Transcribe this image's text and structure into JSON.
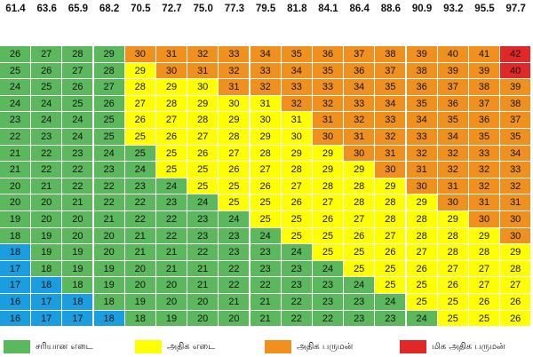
{
  "chart_data": {
    "type": "heatmap",
    "columns": [
      "61.4",
      "63.6",
      "65.9",
      "68.2",
      "70.5",
      "72.7",
      "75.0",
      "77.3",
      "79.5",
      "81.8",
      "84.1",
      "86.4",
      "88.6",
      "90.9",
      "93.2",
      "95.5",
      "97.7"
    ],
    "rows": [
      [
        26,
        27,
        28,
        29,
        30,
        31,
        32,
        33,
        34,
        35,
        36,
        37,
        38,
        39,
        40,
        41,
        42
      ],
      [
        25,
        26,
        27,
        28,
        29,
        30,
        31,
        32,
        33,
        34,
        35,
        36,
        37,
        38,
        39,
        39,
        40
      ],
      [
        24,
        25,
        26,
        27,
        28,
        29,
        30,
        31,
        32,
        33,
        33,
        34,
        35,
        36,
        37,
        38,
        39
      ],
      [
        24,
        24,
        25,
        26,
        27,
        28,
        29,
        30,
        31,
        32,
        32,
        33,
        34,
        35,
        36,
        37,
        38
      ],
      [
        23,
        24,
        24,
        25,
        26,
        27,
        28,
        29,
        30,
        31,
        31,
        32,
        33,
        34,
        35,
        36,
        37
      ],
      [
        22,
        23,
        24,
        25,
        25,
        26,
        27,
        28,
        29,
        30,
        30,
        31,
        32,
        33,
        34,
        35,
        35
      ],
      [
        21,
        22,
        23,
        24,
        25,
        25,
        26,
        27,
        28,
        29,
        29,
        30,
        31,
        32,
        32,
        33,
        34
      ],
      [
        21,
        22,
        22,
        23,
        24,
        25,
        25,
        26,
        27,
        28,
        29,
        29,
        30,
        31,
        32,
        32,
        33
      ],
      [
        20,
        21,
        22,
        22,
        23,
        24,
        25,
        25,
        26,
        27,
        28,
        28,
        29,
        30,
        31,
        32,
        32
      ],
      [
        20,
        20,
        21,
        22,
        22,
        23,
        24,
        25,
        25,
        26,
        27,
        28,
        28,
        29,
        30,
        31,
        31
      ],
      [
        19,
        20,
        20,
        21,
        22,
        22,
        23,
        24,
        25,
        25,
        26,
        27,
        28,
        28,
        29,
        30,
        30
      ],
      [
        18,
        19,
        20,
        20,
        21,
        22,
        23,
        23,
        24,
        25,
        25,
        26,
        27,
        28,
        28,
        29,
        30
      ],
      [
        18,
        19,
        19,
        20,
        21,
        21,
        22,
        23,
        23,
        24,
        25,
        25,
        26,
        27,
        28,
        28,
        29
      ],
      [
        17,
        18,
        19,
        19,
        20,
        21,
        21,
        22,
        23,
        23,
        24,
        25,
        25,
        26,
        27,
        27,
        28
      ],
      [
        17,
        18,
        18,
        19,
        20,
        20,
        21,
        22,
        22,
        23,
        23,
        24,
        25,
        25,
        26,
        27,
        27
      ],
      [
        16,
        17,
        18,
        18,
        19,
        20,
        20,
        21,
        21,
        22,
        23,
        23,
        24,
        25,
        25,
        26,
        26
      ],
      [
        16,
        17,
        17,
        18,
        18,
        19,
        20,
        20,
        21,
        22,
        22,
        23,
        23,
        24,
        25,
        25,
        26
      ]
    ],
    "colors": {
      "green": "#5cb85c",
      "yellow": "#ffff00",
      "orange": "#f0901e",
      "red": "#e02828",
      "blue": "#1a9ee0"
    },
    "cell_colors": [
      "GGGGOOOOOOOOOOOOR",
      "GGGGYOOOOOOOOOOOR",
      "GGGGYYYOOOOOOOOOO",
      "GGGGYYYYYOOOOOOOO",
      "GGGGYYYYYYOOOOOOO",
      "GGGGYYYYYYOOOOOOO",
      "GGGGGYYYYYYOOOOOO",
      "GGGGGYYYYYYYOOOOO",
      "GGGGGGYYYYYYYOOOO",
      "GGGGGGGYYYYYYYOOO",
      "GGGGGGGGYYYYYYYOO",
      "GGGGGGGGGYYYYYYYO",
      "BGGGGGGGGGYYYYYYY",
      "BGGGGGGGGGGYYYYYY",
      "BBGGGGGGGGGGYYYYY",
      "BBBGGGGGGGGGGYYYY",
      "BBBBGGGGGGGGGGYYY"
    ],
    "legend": [
      {
        "label": "சரியான எடை",
        "color": "#5cb85c"
      },
      {
        "label": "அதிக எடை",
        "color": "#ffff00"
      },
      {
        "label": "அதிக பருமன்",
        "color": "#f0901e"
      },
      {
        "label": "மிக அதிக பருமன்",
        "color": "#e02828"
      }
    ]
  }
}
